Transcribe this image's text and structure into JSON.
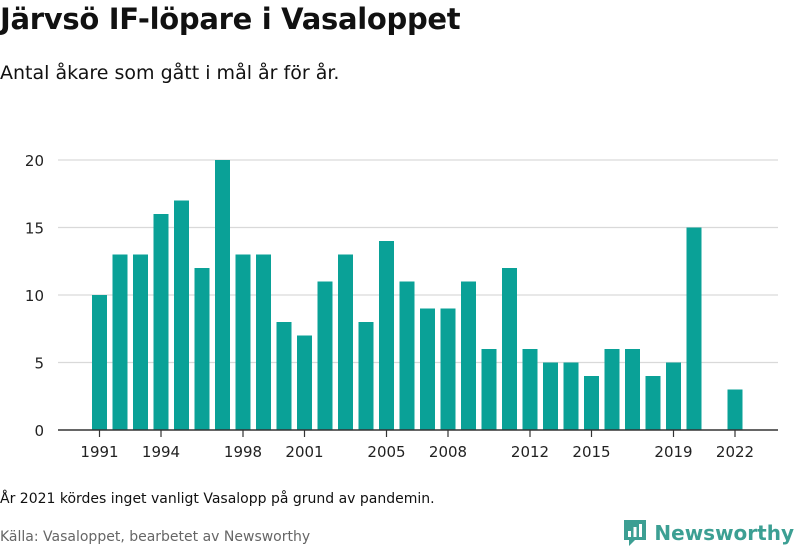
{
  "header": {
    "title": "Järvsö IF-löpare i Vasaloppet",
    "subtitle": "Antal åkare som gått i mål år för år."
  },
  "footer": {
    "note": "År 2021 kördes inget vanligt Vasalopp på grund av pandemin.",
    "source": "Källa: Vasaloppet, bearbetet av Newsworthy",
    "brand_name": "Newsworthy"
  },
  "colors": {
    "bar": "#0aa197",
    "grid": "#d9d9d9",
    "axis": "#333333",
    "brand": "#3c9f93"
  },
  "chart_data": {
    "type": "bar",
    "categories": [
      1991,
      1992,
      1993,
      1994,
      1995,
      1996,
      1997,
      1998,
      1999,
      2000,
      2001,
      2002,
      2003,
      2004,
      2005,
      2006,
      2007,
      2008,
      2009,
      2010,
      2011,
      2012,
      2013,
      2014,
      2015,
      2016,
      2017,
      2018,
      2019,
      2020,
      2021,
      2022
    ],
    "values": [
      10,
      13,
      13,
      16,
      17,
      12,
      20,
      13,
      13,
      8,
      7,
      11,
      13,
      8,
      14,
      11,
      9,
      9,
      11,
      6,
      12,
      6,
      5,
      5,
      4,
      6,
      6,
      4,
      5,
      15,
      null,
      3
    ],
    "x_tick_labels": [
      1991,
      1994,
      1998,
      2001,
      2005,
      2008,
      2012,
      2015,
      2019,
      2022
    ],
    "y_ticks": [
      0,
      5,
      10,
      15,
      20
    ],
    "ylim": [
      0,
      20
    ],
    "grid": true,
    "legend": "none"
  }
}
